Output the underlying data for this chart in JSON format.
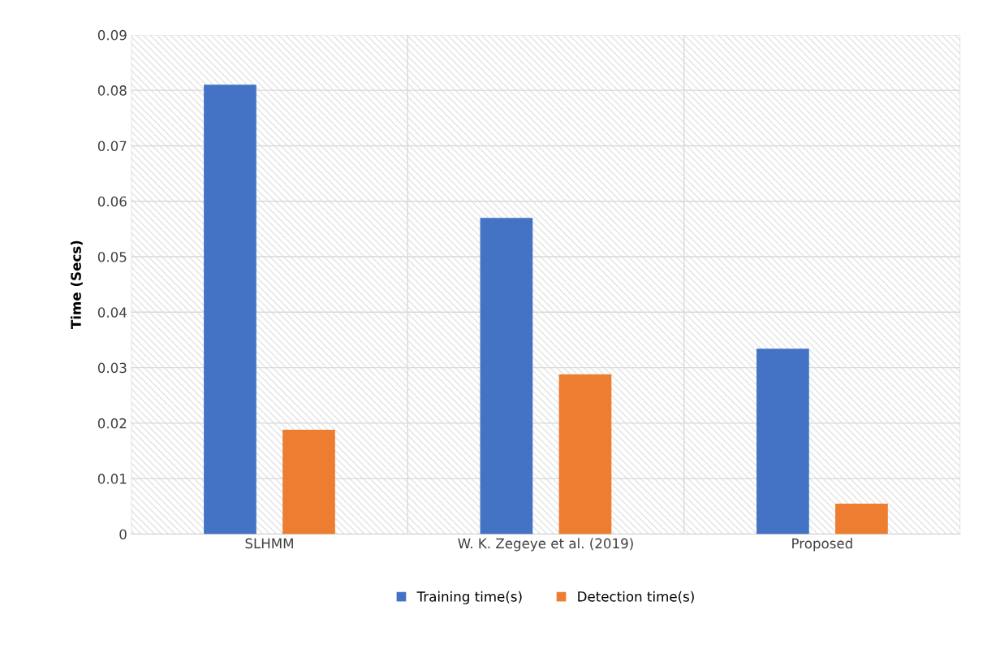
{
  "chart_data": {
    "type": "bar",
    "ylabel": "Time (Secs)",
    "categories": [
      "SLHMM",
      "W. K. Zegeye et al. (2019)",
      "Proposed"
    ],
    "series": [
      {
        "name": "Training time(s)",
        "color": "#4472c4",
        "values": [
          0.081,
          0.057,
          0.0334
        ]
      },
      {
        "name": "Detection time(s)",
        "color": "#ed7d31",
        "values": [
          0.0188,
          0.0288,
          0.0055
        ]
      }
    ],
    "ylim": [
      0,
      0.09
    ],
    "yticks": [
      0,
      0.01,
      0.02,
      0.03,
      0.04,
      0.05,
      0.06,
      0.07,
      0.08,
      0.09
    ],
    "grid": true,
    "legend": "bottom"
  }
}
